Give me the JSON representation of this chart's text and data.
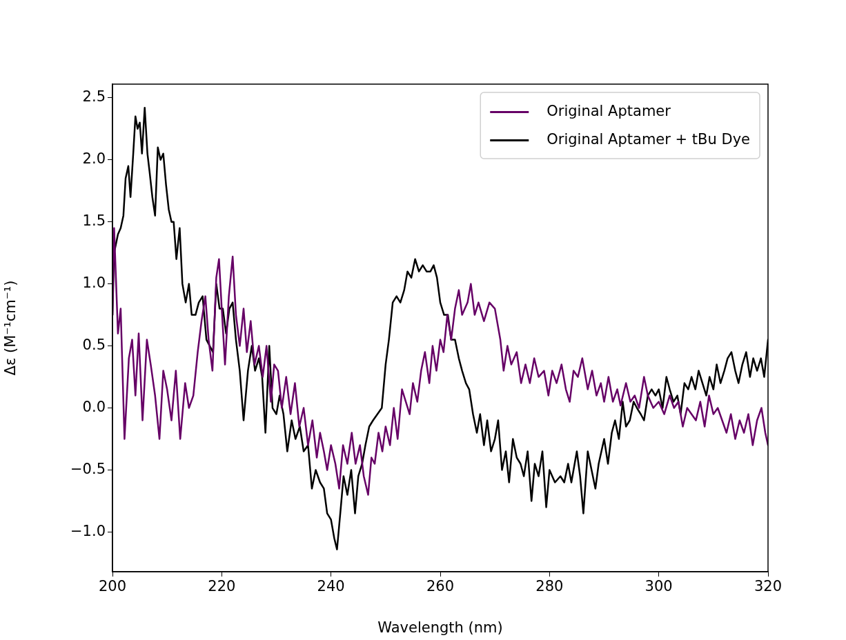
{
  "chart_data": {
    "type": "line",
    "xlabel": "Wavelength (nm)",
    "ylabel": "Δε (M⁻¹cm⁻¹)",
    "xlim": [
      200,
      320
    ],
    "ylim": [
      -1.32,
      2.61
    ],
    "xticks": [
      200,
      220,
      240,
      260,
      280,
      300,
      320
    ],
    "yticks": [
      {
        "value": -1,
        "label": "−1.0"
      },
      {
        "value": -0.5,
        "label": "−0.5"
      },
      {
        "value": 0,
        "label": "0.0"
      },
      {
        "value": 0.5,
        "label": "0.5"
      },
      {
        "value": 1,
        "label": "1.0"
      },
      {
        "value": 1.5,
        "label": "1.5"
      },
      {
        "value": 2,
        "label": "2.0"
      },
      {
        "value": 2.5,
        "label": "2.5"
      }
    ],
    "grid": false,
    "legend": "top right",
    "marker": "none",
    "line_style": "solid",
    "series": [
      {
        "name": "Original Aptamer",
        "color": "#660066",
        "x": [
          200,
          200.3,
          201,
          201.5,
          202.2,
          203,
          203.6,
          204.2,
          204.8,
          205.5,
          206.3,
          207,
          207.8,
          208.6,
          209.3,
          210,
          210.8,
          211.6,
          212.4,
          213.3,
          214,
          214.8,
          215.6,
          216.3,
          217,
          217.6,
          218.3,
          219,
          219.5,
          220,
          220.6,
          221.3,
          222,
          222.6,
          223.3,
          224,
          224.6,
          225.3,
          226,
          226.8,
          227.5,
          228.2,
          229,
          229.6,
          230.3,
          231,
          231.8,
          232.6,
          233.4,
          234.2,
          235,
          235.8,
          236.6,
          237.4,
          238,
          238.7,
          239.3,
          240,
          240.8,
          241.5,
          242.2,
          243,
          243.8,
          244.5,
          245.3,
          246,
          246.8,
          247.4,
          248,
          248.7,
          249.4,
          250,
          250.8,
          251.5,
          252.2,
          253,
          253.7,
          254.4,
          255,
          255.8,
          256.5,
          257.2,
          258,
          258.6,
          259.3,
          260,
          260.6,
          261.3,
          262,
          262.7,
          263.4,
          264,
          265,
          265.6,
          266.3,
          267,
          268,
          269,
          270,
          271,
          271.6,
          272.3,
          273,
          274,
          274.8,
          275.6,
          276.4,
          277.2,
          278,
          279,
          279.8,
          280.5,
          281.3,
          282.2,
          283,
          283.7,
          284.4,
          285.2,
          286,
          287,
          287.8,
          288.6,
          289.4,
          290,
          290.8,
          291.6,
          292.4,
          293,
          294,
          294.8,
          295.6,
          296.4,
          297.3,
          298,
          299,
          300,
          301,
          302,
          302.8,
          303.6,
          304.4,
          305.2,
          306,
          306.8,
          307.6,
          308.4,
          309.2,
          310,
          310.8,
          311.6,
          312.4,
          313.2,
          314,
          314.8,
          315.6,
          316.4,
          317.2,
          318,
          318.8,
          319.5,
          320
        ],
        "values": [
          0.75,
          1.45,
          0.6,
          0.8,
          -0.25,
          0.4,
          0.55,
          0.1,
          0.6,
          -0.1,
          0.55,
          0.35,
          0.1,
          -0.25,
          0.3,
          0.15,
          -0.1,
          0.3,
          -0.25,
          0.2,
          0,
          0.1,
          0.45,
          0.7,
          0.9,
          0.55,
          0.3,
          1.05,
          1.2,
          0.8,
          0.35,
          0.9,
          1.22,
          0.75,
          0.5,
          0.8,
          0.45,
          0.7,
          0.35,
          0.5,
          0.25,
          0.5,
          0.05,
          0.35,
          0.3,
          0,
          0.25,
          -0.05,
          0.2,
          -0.15,
          0,
          -0.3,
          -0.1,
          -0.4,
          -0.2,
          -0.35,
          -0.5,
          -0.3,
          -0.45,
          -0.65,
          -0.3,
          -0.45,
          -0.2,
          -0.45,
          -0.3,
          -0.55,
          -0.7,
          -0.4,
          -0.45,
          -0.2,
          -0.35,
          -0.15,
          -0.3,
          0,
          -0.25,
          0.15,
          0.05,
          -0.05,
          0.2,
          0.05,
          0.3,
          0.45,
          0.2,
          0.5,
          0.3,
          0.55,
          0.45,
          0.75,
          0.55,
          0.8,
          0.95,
          0.75,
          0.85,
          1,
          0.75,
          0.85,
          0.7,
          0.85,
          0.8,
          0.55,
          0.3,
          0.5,
          0.35,
          0.45,
          0.2,
          0.35,
          0.2,
          0.4,
          0.25,
          0.3,
          0.1,
          0.3,
          0.2,
          0.35,
          0.15,
          0.05,
          0.3,
          0.25,
          0.4,
          0.15,
          0.3,
          0.1,
          0.2,
          0.05,
          0.25,
          0.05,
          0.15,
          0.02,
          0.2,
          0.05,
          0.1,
          0,
          0.25,
          0.1,
          0,
          0.05,
          -0.05,
          0.1,
          0,
          0.05,
          -0.15,
          0,
          -0.05,
          -0.1,
          0.05,
          -0.15,
          0.1,
          -0.05,
          0,
          -0.1,
          -0.2,
          -0.05,
          -0.25,
          -0.1,
          -0.2,
          -0.05,
          -0.3,
          -0.1,
          0,
          -0.2,
          -0.3
        ]
      },
      {
        "name": "Original Aptamer + tBu Dye",
        "color": "#000000",
        "x": [
          200,
          200.3,
          201,
          201.5,
          202,
          202.4,
          202.9,
          203.3,
          203.8,
          204.2,
          204.6,
          205,
          205.4,
          205.9,
          206.4,
          206.8,
          207.3,
          207.8,
          208.3,
          208.8,
          209.3,
          209.8,
          210.3,
          210.8,
          211.2,
          211.7,
          212.3,
          212.8,
          213.4,
          214,
          214.5,
          215.2,
          215.8,
          216.5,
          217.2,
          217.8,
          218.4,
          219,
          219.6,
          220.2,
          220.8,
          221.4,
          222,
          222.6,
          223.3,
          224,
          224.8,
          225.5,
          226.1,
          226.8,
          227.4,
          228,
          228.7,
          229.3,
          230,
          230.6,
          231.3,
          232,
          232.8,
          233.5,
          234.3,
          235,
          235.8,
          236.5,
          237.2,
          238,
          238.7,
          239.3,
          240,
          240.6,
          241.1,
          241.7,
          242.3,
          243,
          243.7,
          244.4,
          245,
          245.7,
          246.3,
          247,
          247.7,
          248.5,
          249.3,
          250,
          250.6,
          251.3,
          252,
          252.7,
          253.4,
          254,
          254.7,
          255.4,
          256.1,
          256.8,
          257.5,
          258.2,
          258.8,
          259.4,
          260,
          260.7,
          261.4,
          262,
          262.7,
          263.4,
          264,
          264.7,
          265.3,
          266,
          266.7,
          267.3,
          268,
          268.6,
          269.3,
          270,
          270.6,
          271.3,
          272,
          272.6,
          273.3,
          274,
          274.7,
          275.3,
          276,
          276.7,
          277.3,
          278,
          278.7,
          279.4,
          280,
          281,
          282,
          282.7,
          283.4,
          284,
          285,
          285.6,
          286.2,
          287,
          287.7,
          288.4,
          289,
          290,
          290.7,
          291.4,
          292,
          292.7,
          293.4,
          294,
          294.7,
          295.4,
          296,
          296.7,
          297.3,
          298,
          298.7,
          299.4,
          300,
          300.7,
          301.4,
          302,
          302.7,
          303.4,
          304,
          304.7,
          305.4,
          306,
          306.7,
          307.3,
          308,
          308.7,
          309.3,
          310,
          310.6,
          311.3,
          312,
          312.6,
          313.3,
          314,
          314.6,
          315.3,
          316,
          316.7,
          317.3,
          318,
          318.7,
          319.3,
          320
        ],
        "values": [
          0.75,
          1.25,
          1.4,
          1.45,
          1.55,
          1.85,
          1.95,
          1.7,
          2.05,
          2.35,
          2.25,
          2.3,
          2.05,
          2.42,
          2.05,
          1.9,
          1.7,
          1.55,
          2.1,
          2,
          2.05,
          1.8,
          1.6,
          1.5,
          1.5,
          1.2,
          1.45,
          1,
          0.85,
          1,
          0.75,
          0.75,
          0.85,
          0.9,
          0.55,
          0.5,
          0.45,
          1,
          0.8,
          0.8,
          0.6,
          0.8,
          0.85,
          0.55,
          0.3,
          -0.1,
          0.3,
          0.5,
          0.3,
          0.4,
          0.25,
          -0.2,
          0.5,
          0,
          -0.05,
          0.1,
          -0.05,
          -0.35,
          -0.1,
          -0.25,
          -0.15,
          -0.35,
          -0.3,
          -0.65,
          -0.5,
          -0.6,
          -0.65,
          -0.85,
          -0.9,
          -1.05,
          -1.14,
          -0.85,
          -0.55,
          -0.7,
          -0.5,
          -0.85,
          -0.55,
          -0.45,
          -0.3,
          -0.15,
          -0.1,
          -0.05,
          0,
          0.35,
          0.55,
          0.85,
          0.9,
          0.85,
          0.95,
          1.1,
          1.05,
          1.2,
          1.1,
          1.15,
          1.1,
          1.1,
          1.15,
          1.05,
          0.85,
          0.75,
          0.75,
          0.55,
          0.55,
          0.4,
          0.3,
          0.2,
          0.15,
          -0.05,
          -0.2,
          -0.05,
          -0.3,
          -0.1,
          -0.35,
          -0.25,
          -0.1,
          -0.5,
          -0.35,
          -0.6,
          -0.25,
          -0.4,
          -0.45,
          -0.55,
          -0.35,
          -0.75,
          -0.45,
          -0.55,
          -0.35,
          -0.8,
          -0.5,
          -0.6,
          -0.55,
          -0.6,
          -0.45,
          -0.6,
          -0.35,
          -0.55,
          -0.85,
          -0.35,
          -0.5,
          -0.65,
          -0.45,
          -0.25,
          -0.45,
          -0.2,
          -0.1,
          -0.25,
          0.05,
          -0.15,
          -0.1,
          0.05,
          0,
          -0.05,
          -0.1,
          0.1,
          0.15,
          0.1,
          0.15,
          0,
          0.25,
          0.15,
          0.05,
          0.1,
          -0.05,
          0.2,
          0.15,
          0.25,
          0.15,
          0.3,
          0.2,
          0.1,
          0.25,
          0.15,
          0.35,
          0.2,
          0.3,
          0.4,
          0.45,
          0.3,
          0.2,
          0.35,
          0.45,
          0.25,
          0.4,
          0.3,
          0.4,
          0.25,
          0.55
        ]
      }
    ]
  }
}
